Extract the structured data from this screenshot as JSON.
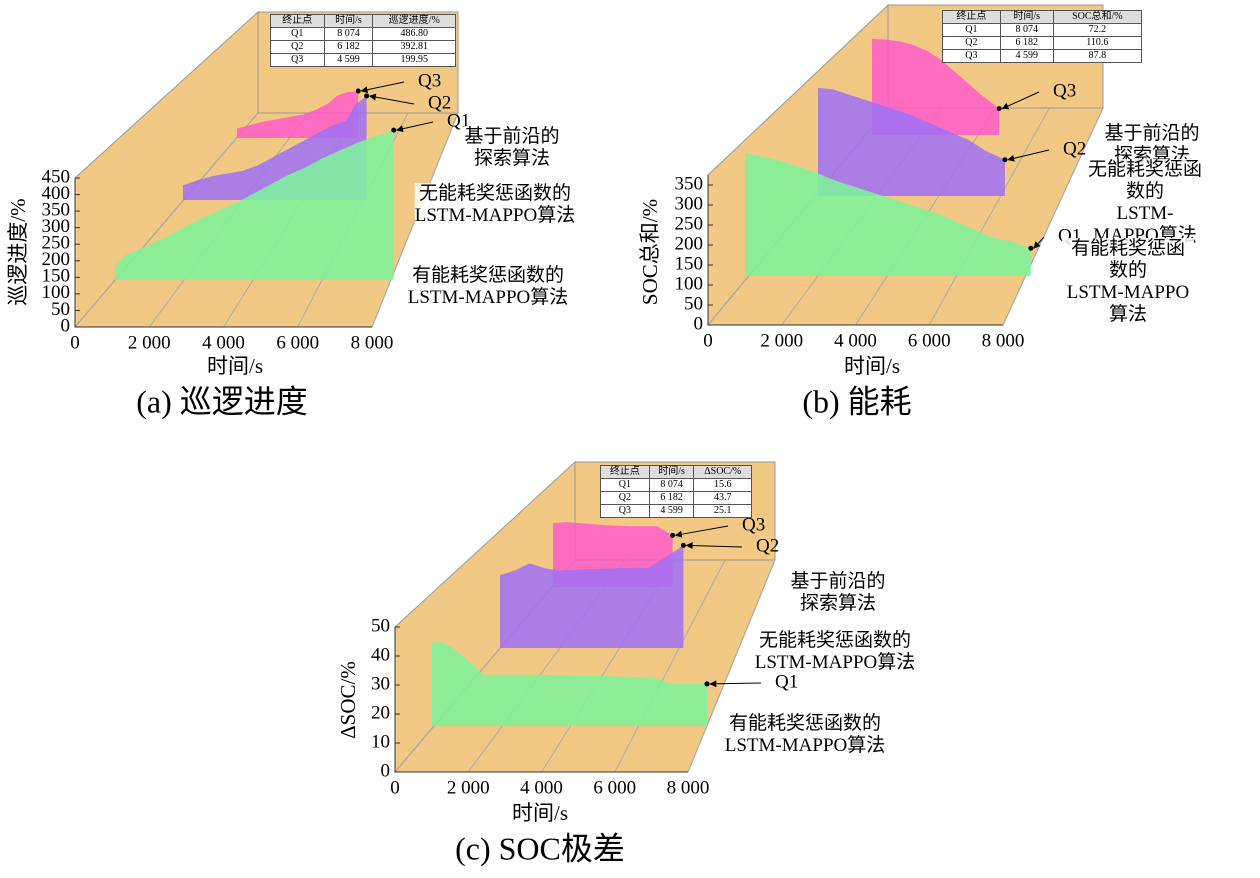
{
  "chart_data": [
    {
      "type": "area3d",
      "title": "(a) 巡逻进度",
      "x_label": "时间/s",
      "y_label": "巡逻进度/%",
      "xlim": [
        0,
        8000
      ],
      "xticks": [
        0,
        {
          "value": 2000,
          "label": "2 000"
        },
        {
          "value": 4000,
          "label": "4 000"
        },
        {
          "value": 6000,
          "label": "6 000"
        },
        {
          "value": 8000,
          "label": "8 000"
        }
      ],
      "ylim": [
        0,
        450
      ],
      "yticks": [
        0,
        50,
        100,
        150,
        200,
        250,
        300,
        350,
        400,
        450
      ],
      "series": [
        {
          "name": "有能耗奖惩函数的\nLSTM-MAPPO算法",
          "point_label": "Q1",
          "color": "#7df59b",
          "x": [
            0,
            300,
            1000,
            1500,
            2000,
            2500,
            3000,
            3500,
            4000,
            4500,
            5000,
            5500,
            6000,
            6500,
            7000,
            7500,
            8074
          ],
          "values": [
            45,
            80,
            115,
            140,
            170,
            200,
            225,
            250,
            280,
            310,
            340,
            365,
            395,
            420,
            445,
            465,
            486.8
          ]
        },
        {
          "name": "无能耗奖惩函数的\nLSTM-MAPPO算法",
          "point_label": "Q2",
          "color": "#a070f5",
          "x": [
            0,
            500,
            1000,
            1500,
            2000,
            2500,
            3000,
            3500,
            4000,
            4500,
            5000,
            5500,
            5800,
            6182
          ],
          "values": [
            55,
            75,
            90,
            100,
            110,
            130,
            160,
            190,
            220,
            250,
            280,
            300,
            360,
            392.81
          ]
        },
        {
          "name": "基于前沿的\n探索算法",
          "point_label": "Q3",
          "color": "#ff5cc8",
          "x": [
            0,
            500,
            1000,
            1500,
            2000,
            2500,
            3000,
            3500,
            3800,
            4200,
            4599
          ],
          "values": [
            40,
            55,
            70,
            80,
            90,
            100,
            120,
            150,
            180,
            195,
            199.95
          ]
        }
      ],
      "table": {
        "columns": [
          "终止点",
          "时间/s",
          "巡逻进度/%"
        ],
        "rows": [
          [
            "Q1",
            "8 074",
            "486.80"
          ],
          [
            "Q2",
            "6 182",
            "392.81"
          ],
          [
            "Q3",
            "4 599",
            "199.95"
          ]
        ]
      }
    },
    {
      "type": "area3d",
      "title": "(b) 能耗",
      "x_label": "时间/s",
      "y_label": "SOC总和/%",
      "xlim": [
        0,
        8000
      ],
      "xticks": [
        0,
        {
          "value": 2000,
          "label": "2 000"
        },
        {
          "value": 4000,
          "label": "4 000"
        },
        {
          "value": 6000,
          "label": "6 000"
        },
        {
          "value": 8000,
          "label": "8 000"
        }
      ],
      "ylim": [
        0,
        375
      ],
      "yticks": [
        0,
        50,
        100,
        150,
        200,
        250,
        300,
        350
      ],
      "series": [
        {
          "name": "有能耗奖惩函数的\nLSTM-MAPPO算法",
          "point_label": "Q1",
          "color": "#7df59b",
          "x": [
            0,
            800,
            1500,
            2000,
            2500,
            3000,
            3500,
            4000,
            4500,
            5000,
            5500,
            6000,
            6500,
            7000,
            7500,
            8074
          ],
          "values": [
            320,
            305,
            285,
            270,
            250,
            235,
            220,
            205,
            190,
            175,
            160,
            140,
            120,
            100,
            90,
            72.2
          ]
        },
        {
          "name": "无能耗奖惩函数的\nLSTM-MAPPO算法",
          "point_label": "Q2",
          "color": "#a070f5",
          "x": [
            0,
            500,
            1000,
            2000,
            3000,
            4000,
            5000,
            5500,
            6182
          ],
          "values": [
            330,
            325,
            310,
            280,
            250,
            210,
            170,
            140,
            110.6
          ]
        },
        {
          "name": "基于前沿的\n探索算法",
          "point_label": "Q3",
          "color": "#ff5cc8",
          "x": [
            0,
            500,
            1000,
            1500,
            2000,
            2500,
            3000,
            3500,
            4000,
            4599
          ],
          "values": [
            320,
            318,
            312,
            300,
            280,
            250,
            210,
            170,
            130,
            87.8
          ]
        }
      ],
      "table": {
        "columns": [
          "终止点",
          "时间/s",
          "SOC总和/%"
        ],
        "rows": [
          [
            "Q1",
            "8 074",
            "72.2"
          ],
          [
            "Q2",
            "6 182",
            "110.6"
          ],
          [
            "Q3",
            "4 599",
            "87.8"
          ]
        ]
      }
    },
    {
      "type": "area3d",
      "title": "(c) SOC极差",
      "x_label": "时间/s",
      "y_label": "ΔSOC/%",
      "xlim": [
        0,
        8000
      ],
      "xticks": [
        0,
        {
          "value": 2000,
          "label": "2 000"
        },
        {
          "value": 4000,
          "label": "4 000"
        },
        {
          "value": 6000,
          "label": "6 000"
        },
        {
          "value": 8000,
          "label": "8 000"
        }
      ],
      "ylim": [
        0,
        50
      ],
      "yticks": [
        0,
        10,
        20,
        30,
        40,
        50
      ],
      "series": [
        {
          "name": "有能耗奖惩函数的\nLSTM-MAPPO算法",
          "point_label": "Q1",
          "color": "#7df59b",
          "x": [
            0,
            300,
            600,
            1000,
            1500,
            3000,
            5000,
            6500,
            7000,
            8074
          ],
          "values": [
            31,
            31,
            29,
            25,
            19,
            19,
            18.5,
            18,
            15.6,
            15.6
          ]
        },
        {
          "name": "无能耗奖惩函数的\nLSTM-MAPPO算法",
          "point_label": "Q2",
          "color": "#a070f5",
          "x": [
            0,
            500,
            1000,
            1500,
            2000,
            3000,
            4000,
            5000,
            5500,
            6182
          ],
          "values": [
            31,
            33,
            36,
            34,
            33,
            33.5,
            34,
            34,
            38,
            43.7
          ]
        },
        {
          "name": "基于前沿的\n探索算法",
          "point_label": "Q3",
          "color": "#ff5cc8",
          "x": [
            0,
            500,
            1000,
            2000,
            3000,
            4000,
            4200,
            4599
          ],
          "values": [
            31,
            31.5,
            31,
            30,
            29.5,
            29.5,
            28,
            25.1
          ]
        }
      ],
      "table": {
        "columns": [
          "终止点",
          "时间/s",
          "ΔSOC/%"
        ],
        "rows": [
          [
            "Q1",
            "8 074",
            "15.6"
          ],
          [
            "Q2",
            "6 182",
            "43.7"
          ],
          [
            "Q3",
            "4 599",
            "25.1"
          ]
        ]
      }
    }
  ]
}
